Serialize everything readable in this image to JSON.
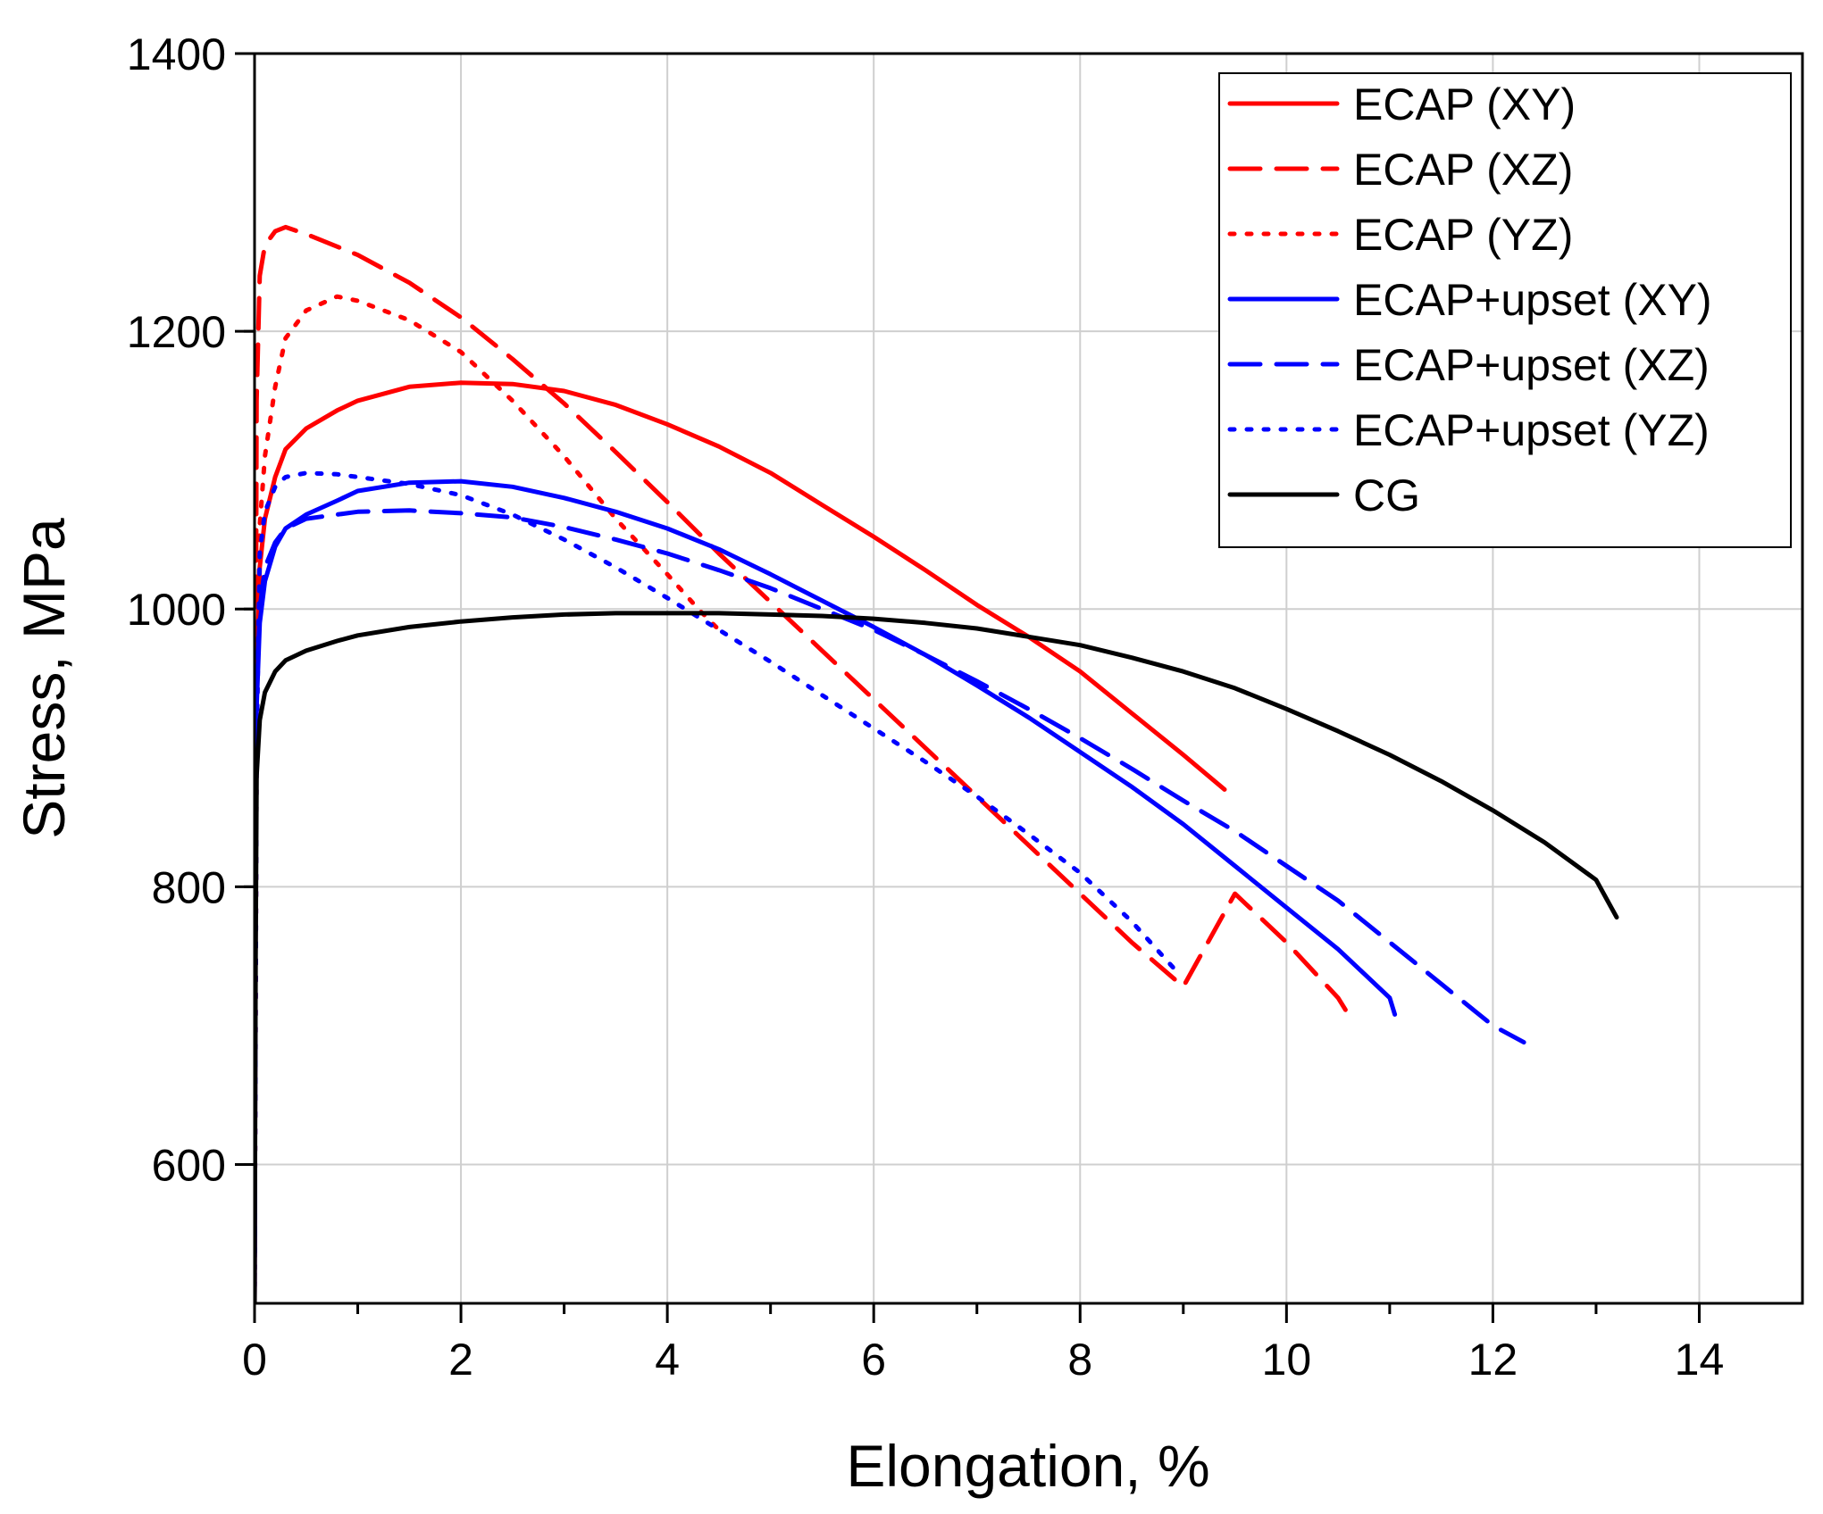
{
  "chart_data": {
    "type": "line",
    "title": "",
    "xlabel": "Elongation, %",
    "ylabel": "Stress, MPa",
    "xlim": [
      0,
      15
    ],
    "ylim": [
      500,
      1400
    ],
    "xticks": [
      0,
      2,
      4,
      6,
      8,
      10,
      12,
      14
    ],
    "yticks": [
      600,
      800,
      1000,
      1200,
      1400
    ],
    "x_tick_labels": [
      "0",
      "2",
      "4",
      "6",
      "8",
      "10",
      "12",
      "14"
    ],
    "y_tick_labels": [
      "600",
      "800",
      "1000",
      "1200",
      "1400"
    ],
    "grid": true,
    "legend_position": "top-right",
    "series": [
      {
        "name": "ECAP (XY)",
        "color": "#ff0000",
        "dash": "solid",
        "points": [
          [
            0,
            500
          ],
          [
            0.01,
            800
          ],
          [
            0.02,
            950
          ],
          [
            0.05,
            1030
          ],
          [
            0.1,
            1065
          ],
          [
            0.2,
            1095
          ],
          [
            0.3,
            1115
          ],
          [
            0.5,
            1130
          ],
          [
            0.8,
            1143
          ],
          [
            1.0,
            1150
          ],
          [
            1.5,
            1160
          ],
          [
            2.0,
            1163
          ],
          [
            2.5,
            1162
          ],
          [
            3.0,
            1157
          ],
          [
            3.5,
            1147
          ],
          [
            4.0,
            1133
          ],
          [
            4.5,
            1117
          ],
          [
            5.0,
            1098
          ],
          [
            5.5,
            1075
          ],
          [
            6.0,
            1052
          ],
          [
            6.5,
            1028
          ],
          [
            7.0,
            1003
          ],
          [
            7.5,
            980
          ],
          [
            8.0,
            955
          ],
          [
            8.5,
            925
          ],
          [
            9.0,
            895
          ],
          [
            9.4,
            870
          ]
        ]
      },
      {
        "name": "ECAP (XZ)",
        "color": "#ff0000",
        "dash": "long",
        "points": [
          [
            0,
            500
          ],
          [
            0.01,
            900
          ],
          [
            0.02,
            1150
          ],
          [
            0.05,
            1240
          ],
          [
            0.1,
            1262
          ],
          [
            0.2,
            1272
          ],
          [
            0.3,
            1275
          ],
          [
            0.5,
            1270
          ],
          [
            1.0,
            1255
          ],
          [
            1.5,
            1235
          ],
          [
            2.0,
            1210
          ],
          [
            2.5,
            1180
          ],
          [
            3.0,
            1148
          ],
          [
            3.5,
            1113
          ],
          [
            4.0,
            1077
          ],
          [
            4.5,
            1040
          ],
          [
            5.0,
            1005
          ],
          [
            5.5,
            970
          ],
          [
            6.0,
            935
          ],
          [
            6.5,
            900
          ],
          [
            7.0,
            865
          ],
          [
            7.5,
            830
          ],
          [
            8.0,
            795
          ],
          [
            8.5,
            760
          ],
          [
            9.0,
            728
          ],
          [
            9.5,
            795
          ],
          [
            10.0,
            760
          ],
          [
            10.5,
            720
          ],
          [
            10.65,
            702
          ]
        ]
      },
      {
        "name": "ECAP (YZ)",
        "color": "#ff0000",
        "dash": "dot",
        "points": [
          [
            0,
            500
          ],
          [
            0.02,
            900
          ],
          [
            0.05,
            1060
          ],
          [
            0.1,
            1110
          ],
          [
            0.2,
            1160
          ],
          [
            0.3,
            1195
          ],
          [
            0.5,
            1215
          ],
          [
            0.8,
            1225
          ],
          [
            1.0,
            1222
          ],
          [
            1.5,
            1208
          ],
          [
            2.0,
            1185
          ],
          [
            2.5,
            1150
          ],
          [
            3.0,
            1110
          ],
          [
            3.5,
            1065
          ],
          [
            4.0,
            1025
          ],
          [
            4.3,
            1000
          ],
          [
            4.5,
            985
          ]
        ]
      },
      {
        "name": "ECAP+upset (XY)",
        "color": "#0000ff",
        "dash": "solid",
        "points": [
          [
            0,
            500
          ],
          [
            0.01,
            800
          ],
          [
            0.02,
            930
          ],
          [
            0.05,
            990
          ],
          [
            0.1,
            1020
          ],
          [
            0.2,
            1045
          ],
          [
            0.3,
            1058
          ],
          [
            0.5,
            1068
          ],
          [
            0.8,
            1078
          ],
          [
            1.0,
            1085
          ],
          [
            1.5,
            1091
          ],
          [
            2.0,
            1092
          ],
          [
            2.5,
            1088
          ],
          [
            3.0,
            1080
          ],
          [
            3.5,
            1070
          ],
          [
            4.0,
            1058
          ],
          [
            4.5,
            1043
          ],
          [
            5.0,
            1025
          ],
          [
            5.5,
            1006
          ],
          [
            6.0,
            987
          ],
          [
            6.5,
            967
          ],
          [
            7.0,
            945
          ],
          [
            7.5,
            922
          ],
          [
            8.0,
            897
          ],
          [
            8.5,
            872
          ],
          [
            9.0,
            845
          ],
          [
            9.5,
            815
          ],
          [
            10.0,
            785
          ],
          [
            10.5,
            755
          ],
          [
            11.0,
            720
          ],
          [
            11.05,
            708
          ]
        ]
      },
      {
        "name": "ECAP+upset (XZ)",
        "color": "#0000ff",
        "dash": "long",
        "points": [
          [
            0,
            500
          ],
          [
            0.01,
            820
          ],
          [
            0.02,
            940
          ],
          [
            0.05,
            1000
          ],
          [
            0.1,
            1030
          ],
          [
            0.2,
            1048
          ],
          [
            0.3,
            1058
          ],
          [
            0.5,
            1065
          ],
          [
            0.8,
            1068
          ],
          [
            1.0,
            1070
          ],
          [
            1.5,
            1071
          ],
          [
            2.0,
            1069
          ],
          [
            2.5,
            1066
          ],
          [
            3.0,
            1059
          ],
          [
            3.5,
            1050
          ],
          [
            4.0,
            1040
          ],
          [
            4.5,
            1028
          ],
          [
            5.0,
            1015
          ],
          [
            5.5,
            1000
          ],
          [
            6.0,
            985
          ],
          [
            6.5,
            967
          ],
          [
            7.0,
            948
          ],
          [
            7.5,
            928
          ],
          [
            8.0,
            907
          ],
          [
            8.5,
            885
          ],
          [
            9.0,
            862
          ],
          [
            9.5,
            840
          ],
          [
            10.0,
            815
          ],
          [
            10.5,
            790
          ],
          [
            11.0,
            760
          ],
          [
            11.5,
            730
          ],
          [
            12.0,
            700
          ],
          [
            12.3,
            688
          ]
        ]
      },
      {
        "name": "ECAP+upset (YZ)",
        "color": "#0000ff",
        "dash": "dot",
        "points": [
          [
            0,
            500
          ],
          [
            0.02,
            900
          ],
          [
            0.05,
            1040
          ],
          [
            0.1,
            1070
          ],
          [
            0.2,
            1088
          ],
          [
            0.3,
            1095
          ],
          [
            0.5,
            1098
          ],
          [
            0.8,
            1097
          ],
          [
            1.0,
            1095
          ],
          [
            1.5,
            1090
          ],
          [
            2.0,
            1082
          ],
          [
            2.5,
            1068
          ],
          [
            3.0,
            1050
          ],
          [
            3.5,
            1030
          ],
          [
            4.0,
            1008
          ],
          [
            4.5,
            985
          ],
          [
            5.0,
            962
          ],
          [
            5.5,
            938
          ],
          [
            6.0,
            914
          ],
          [
            6.5,
            890
          ],
          [
            7.0,
            865
          ],
          [
            7.5,
            838
          ],
          [
            8.0,
            810
          ],
          [
            8.5,
            775
          ],
          [
            8.9,
            742
          ]
        ]
      },
      {
        "name": "CG",
        "color": "#000000",
        "dash": "solid",
        "points": [
          [
            0,
            500
          ],
          [
            0.01,
            750
          ],
          [
            0.02,
            880
          ],
          [
            0.05,
            920
          ],
          [
            0.1,
            940
          ],
          [
            0.2,
            955
          ],
          [
            0.3,
            963
          ],
          [
            0.5,
            970
          ],
          [
            0.8,
            977
          ],
          [
            1.0,
            981
          ],
          [
            1.5,
            987
          ],
          [
            2.0,
            991
          ],
          [
            2.5,
            994
          ],
          [
            3.0,
            996
          ],
          [
            3.5,
            997
          ],
          [
            4.0,
            997
          ],
          [
            4.5,
            997
          ],
          [
            5.0,
            996
          ],
          [
            5.5,
            995
          ],
          [
            6.0,
            993
          ],
          [
            6.5,
            990
          ],
          [
            7.0,
            986
          ],
          [
            7.5,
            980
          ],
          [
            8.0,
            974
          ],
          [
            8.5,
            965
          ],
          [
            9.0,
            955
          ],
          [
            9.5,
            943
          ],
          [
            10.0,
            928
          ],
          [
            10.5,
            912
          ],
          [
            11.0,
            895
          ],
          [
            11.5,
            876
          ],
          [
            12.0,
            855
          ],
          [
            12.5,
            832
          ],
          [
            13.0,
            805
          ],
          [
            13.2,
            778
          ]
        ]
      }
    ]
  }
}
